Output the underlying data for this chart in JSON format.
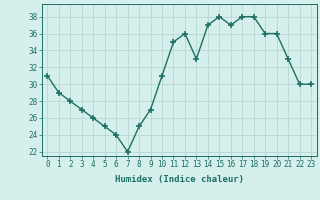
{
  "x": [
    0,
    1,
    2,
    3,
    4,
    5,
    6,
    7,
    8,
    9,
    10,
    11,
    12,
    13,
    14,
    15,
    16,
    17,
    18,
    19,
    20,
    21,
    22,
    23
  ],
  "y": [
    31,
    29,
    28,
    27,
    26,
    25,
    24,
    22,
    25,
    27,
    31,
    35,
    36,
    33,
    37,
    38,
    37,
    38,
    38,
    36,
    36,
    33,
    30,
    30
  ],
  "line_color": "#1e7060",
  "marker_color": "#1e7060",
  "bg_color": "#d5efec",
  "grid_color": "#b8d8d4",
  "xlabel": "Humidex (Indice chaleur)",
  "ylim": [
    21.5,
    39.5
  ],
  "xlim": [
    -0.5,
    23.5
  ],
  "yticks": [
    22,
    24,
    26,
    28,
    30,
    32,
    34,
    36,
    38
  ],
  "xticks": [
    0,
    1,
    2,
    3,
    4,
    5,
    6,
    7,
    8,
    9,
    10,
    11,
    12,
    13,
    14,
    15,
    16,
    17,
    18,
    19,
    20,
    21,
    22,
    23
  ],
  "tick_color": "#1e7060",
  "label_fontsize": 6.5,
  "tick_fontsize": 5.5,
  "marker_size": 4,
  "line_width": 1.0
}
